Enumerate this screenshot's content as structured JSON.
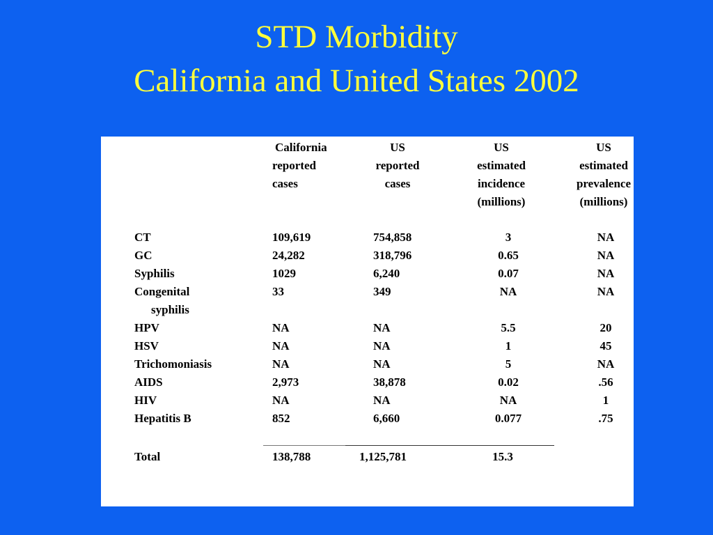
{
  "slide": {
    "title_line1": "STD Morbidity",
    "title_line2": "California and United States 2002"
  },
  "table": {
    "headers": {
      "ca": [
        "California",
        "reported",
        "cases"
      ],
      "us": [
        "US",
        "reported",
        "cases"
      ],
      "inc": [
        "US",
        "estimated",
        "incidence",
        "(millions)"
      ],
      "prev": [
        "US",
        "estimated",
        "prevalence",
        "(millions)"
      ]
    },
    "rows": [
      {
        "name": "CT",
        "ca": "109,619",
        "us": "754,858",
        "inc": "3",
        "prev": "NA"
      },
      {
        "name": "GC",
        "ca": "24,282",
        "us": "318,796",
        "inc": "0.65",
        "prev": "NA"
      },
      {
        "name": "Syphilis",
        "ca": "1029",
        "us": "6,240",
        "inc": "0.07",
        "prev": "NA"
      },
      {
        "name": "Congenital",
        "name2": "syphilis",
        "ca": "33",
        "us": "349",
        "inc": "NA",
        "prev": "NA"
      },
      {
        "name": "HPV",
        "ca": "NA",
        "us": "NA",
        "inc": "5.5",
        "prev": "20"
      },
      {
        "name": "HSV",
        "ca": "NA",
        "us": "NA",
        "inc": "1",
        "prev": "45"
      },
      {
        "name": "Trichomoniasis",
        "ca": "NA",
        "us": "NA",
        "inc": "5",
        "prev": "NA"
      },
      {
        "name": "AIDS",
        "ca": "2,973",
        "us": "38,878",
        "inc": "0.02",
        "prev": ".56"
      },
      {
        "name": "HIV",
        "ca": "NA",
        "us": "NA",
        "inc": "NA",
        "prev": "1"
      },
      {
        "name": "Hepatitis B",
        "ca": "852",
        "us": "6,660",
        "inc": "0.077",
        "prev": ".75"
      }
    ],
    "total": {
      "name": "Total",
      "ca": "138,788",
      "us": "1,125,781",
      "inc": "15.3"
    }
  },
  "colors": {
    "background": "#0d61f0",
    "title": "#ffff3c",
    "panel": "#ffffff"
  }
}
